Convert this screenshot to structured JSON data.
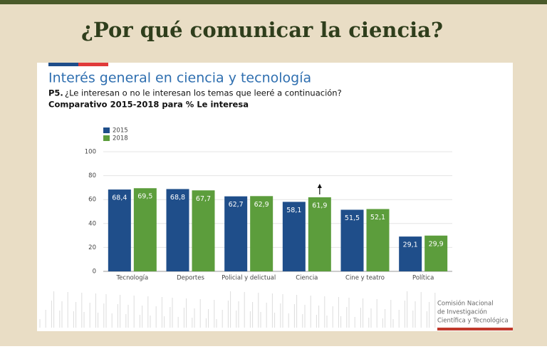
{
  "slide_title": "¿Por qué comunicar la ciencia?",
  "chart_data": {
    "type": "bar",
    "title": "Interés general en ciencia y tecnología",
    "question_label": "P5.",
    "question": "¿Le interesan o no le interesan los temas que leeré a continuación?",
    "subtitle": "Comparativo 2015-2018 para % Le interesa",
    "categories": [
      "Tecnología",
      "Deportes",
      "Policial y delictual",
      "Ciencia",
      "Cine y teatro",
      "Política"
    ],
    "series": [
      {
        "name": "2015",
        "color": "#1f4e8a",
        "values": [
          68.4,
          68.8,
          62.7,
          58.1,
          51.5,
          29.1
        ],
        "value_labels": [
          "68,4",
          "68,8",
          "62,7",
          "58,1",
          "51,5",
          "29,1"
        ]
      },
      {
        "name": "2018",
        "color": "#5c9d3c",
        "values": [
          69.5,
          67.7,
          62.9,
          61.9,
          52.1,
          29.9
        ],
        "value_labels": [
          "69,5",
          "67,7",
          "62,9",
          "61,9",
          "52,1",
          "29,9"
        ]
      }
    ],
    "ylim": [
      0,
      100
    ],
    "yticks": [
      0,
      20,
      40,
      60,
      80,
      100
    ],
    "grid": true
  },
  "footer": [
    "Comisión Nacional",
    "de Investigación",
    "Científica y Tecnológica"
  ]
}
